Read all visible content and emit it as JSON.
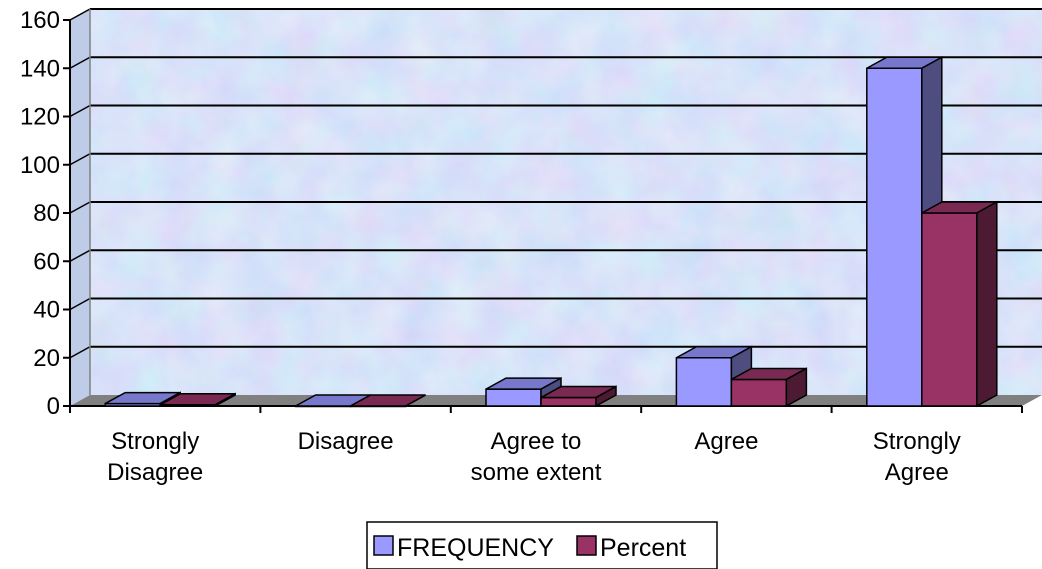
{
  "chart_data": {
    "type": "bar",
    "categories": [
      [
        "Strongly",
        "Disagree"
      ],
      [
        "Disagree"
      ],
      [
        "Agree to",
        "some extent"
      ],
      [
        "Agree"
      ],
      [
        "Strongly",
        "Agree"
      ]
    ],
    "series": [
      {
        "name": "FREQUENCY",
        "values": [
          1,
          0,
          7,
          20,
          140
        ],
        "color": "#9999ff",
        "top_color": "#7777cc",
        "side_color": "#4d4d80"
      },
      {
        "name": "Percent",
        "values": [
          0.5,
          0,
          3.5,
          11,
          80
        ],
        "color": "#993366",
        "top_color": "#7a2952",
        "side_color": "#4d1a33"
      }
    ],
    "y_ticks": [
      "0",
      "20",
      "40",
      "60",
      "80",
      "100",
      "120",
      "140",
      "160"
    ],
    "ylim": [
      0,
      160
    ],
    "grid": true,
    "legend_position": "bottom-center",
    "title": "",
    "xlabel": "",
    "ylabel": ""
  }
}
